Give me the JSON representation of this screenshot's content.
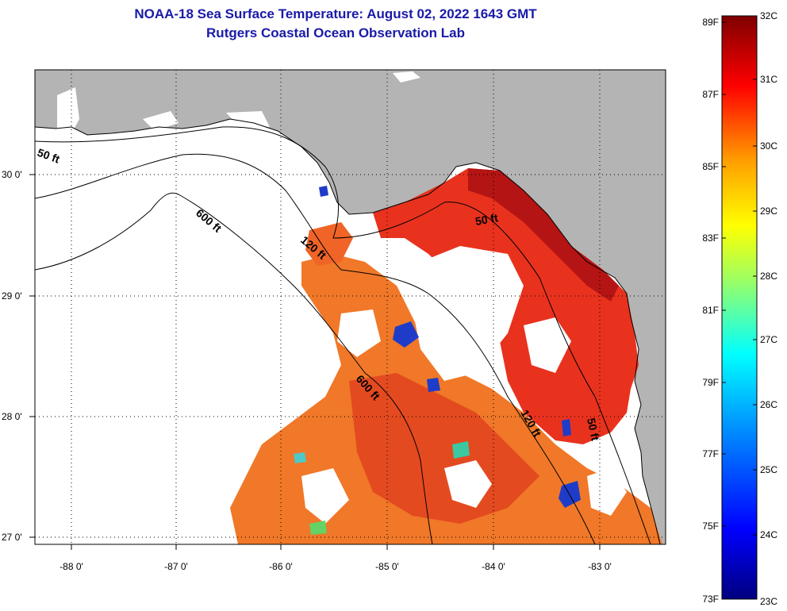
{
  "title": {
    "line1": "NOAA-18 Sea Surface Temperature:  August 02, 2022 1643 GMT",
    "line2": "Rutgers Coastal Ocean Observation Lab"
  },
  "axes": {
    "x_ticks": [
      "-88 0'",
      "-87 0'",
      "-86 0'",
      "-85 0'",
      "-84 0'",
      "-83 0'"
    ],
    "y_ticks": [
      "30 0'",
      "29 0'",
      "28 0'",
      "27 0'"
    ]
  },
  "contours": [
    "50 ft",
    "600 ft",
    "120 ft",
    "50 ft",
    "600 ft",
    "120 ft",
    "50 ft"
  ],
  "colorbar": {
    "fahrenheit": [
      "89F",
      "87F",
      "85F",
      "83F",
      "81F",
      "79F",
      "77F",
      "75F",
      "73F"
    ],
    "celsius": [
      "32C",
      "31C",
      "30C",
      "29C",
      "28C",
      "27C",
      "26C",
      "25C",
      "24C",
      "23C"
    ]
  },
  "colors": {
    "land": "#b4b4b4",
    "cloud": "#ffffff",
    "title": "#1a1aa8",
    "warm": "#e8321e",
    "hot": "#b41414",
    "orange": "#f07828",
    "cool": "#1e3cc8"
  }
}
